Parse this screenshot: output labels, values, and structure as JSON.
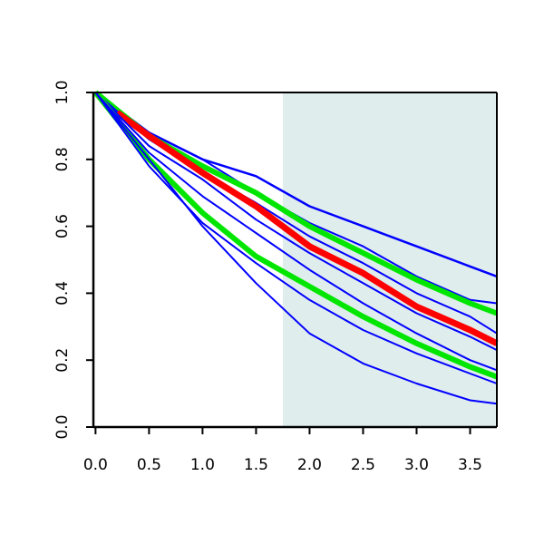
{
  "chart_data": {
    "type": "line",
    "title": "",
    "xlabel": "",
    "ylabel": "",
    "xlim": [
      -0.02,
      3.75
    ],
    "ylim": [
      0.0,
      1.0
    ],
    "x_ticks": [
      0.0,
      0.5,
      1.0,
      1.5,
      2.0,
      2.5,
      3.0,
      3.5
    ],
    "x_tick_labels": [
      "0.0",
      "0.5",
      "1.0",
      "1.5",
      "2.0",
      "2.5",
      "3.0",
      "3.5"
    ],
    "y_ticks": [
      0.0,
      0.2,
      0.4,
      0.6,
      0.8,
      1.0
    ],
    "y_tick_labels": [
      "0.0",
      "0.2",
      "0.4",
      "0.6",
      "0.8",
      "1.0"
    ],
    "shaded_region": {
      "x_start": 1.75,
      "x_end": 3.75,
      "color": "#e0eded"
    },
    "grid": false,
    "legend": "none",
    "series": [
      {
        "color": "#0000ff",
        "width": 2.5,
        "x": [
          0.0,
          0.5,
          1.0,
          1.5,
          2.0,
          2.5,
          3.0,
          3.5,
          3.75
        ],
        "y": [
          1.0,
          0.88,
          0.8,
          0.75,
          0.66,
          0.6,
          0.54,
          0.48,
          0.45
        ]
      },
      {
        "color": "#0000ff",
        "width": 2,
        "x": [
          0.0,
          0.5,
          1.0,
          1.5,
          2.0,
          2.5,
          3.0,
          3.5,
          3.75
        ],
        "y": [
          1.0,
          0.88,
          0.8,
          0.7,
          0.61,
          0.54,
          0.45,
          0.38,
          0.37
        ]
      },
      {
        "color": "#00e600",
        "width": 6,
        "x": [
          0.0,
          0.5,
          1.0,
          1.5,
          2.0,
          2.5,
          3.0,
          3.5,
          3.75
        ],
        "y": [
          1.0,
          0.87,
          0.78,
          0.7,
          0.6,
          0.52,
          0.44,
          0.37,
          0.34
        ]
      },
      {
        "color": "#0000ff",
        "width": 2,
        "x": [
          0.0,
          0.5,
          1.0,
          1.5,
          2.0,
          2.5,
          3.0,
          3.5,
          3.75
        ],
        "y": [
          1.0,
          0.86,
          0.76,
          0.67,
          0.57,
          0.49,
          0.4,
          0.33,
          0.28
        ]
      },
      {
        "color": "#ff0000",
        "width": 7,
        "x": [
          0.2,
          0.5,
          1.0,
          1.5,
          2.0,
          2.5,
          3.0,
          3.5,
          3.75
        ],
        "y": [
          0.94,
          0.87,
          0.76,
          0.66,
          0.54,
          0.46,
          0.36,
          0.29,
          0.25
        ]
      },
      {
        "color": "#0000ff",
        "width": 2,
        "x": [
          0.0,
          0.5,
          1.0,
          1.5,
          2.0,
          2.5,
          3.0,
          3.5,
          3.75
        ],
        "y": [
          1.0,
          0.84,
          0.74,
          0.62,
          0.52,
          0.43,
          0.34,
          0.27,
          0.23
        ]
      },
      {
        "color": "#00e600",
        "width": 6,
        "x": [
          0.0,
          0.5,
          1.0,
          1.5,
          2.0,
          2.5,
          3.0,
          3.5,
          3.75
        ],
        "y": [
          1.0,
          0.8,
          0.64,
          0.51,
          0.42,
          0.33,
          0.25,
          0.18,
          0.15
        ]
      },
      {
        "color": "#0000ff",
        "width": 2,
        "x": [
          0.0,
          0.5,
          1.0,
          1.5,
          2.0,
          2.5,
          3.0,
          3.5,
          3.75
        ],
        "y": [
          1.0,
          0.82,
          0.69,
          0.58,
          0.47,
          0.37,
          0.28,
          0.2,
          0.17
        ]
      },
      {
        "color": "#0000ff",
        "width": 2,
        "x": [
          0.0,
          0.5,
          1.0,
          1.5,
          2.0,
          2.5,
          3.0,
          3.5,
          3.75
        ],
        "y": [
          1.0,
          0.78,
          0.61,
          0.49,
          0.38,
          0.29,
          0.22,
          0.16,
          0.13
        ]
      },
      {
        "color": "#0000ff",
        "width": 2,
        "x": [
          0.0,
          0.5,
          1.0,
          1.5,
          2.0,
          2.5,
          3.0,
          3.5,
          3.75
        ],
        "y": [
          1.0,
          0.8,
          0.6,
          0.43,
          0.28,
          0.19,
          0.13,
          0.08,
          0.07
        ]
      }
    ]
  }
}
